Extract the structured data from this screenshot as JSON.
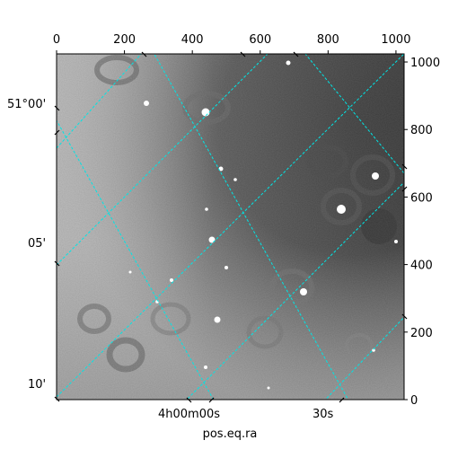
{
  "figure": {
    "xlabel": "pos.eq.ra",
    "colors": {
      "grid": "#00e5e5",
      "frame": "#000000",
      "background": "#ffffff"
    },
    "top_axis": {
      "ticks": [
        "0",
        "200",
        "400",
        "600",
        "800",
        "1000"
      ],
      "values": [
        0,
        200,
        400,
        600,
        800,
        1000
      ],
      "range": [
        0,
        1024
      ]
    },
    "right_axis": {
      "ticks": [
        "0",
        "200",
        "400",
        "600",
        "800",
        "1000"
      ],
      "values": [
        0,
        200,
        400,
        600,
        800,
        1000
      ],
      "range": [
        0,
        1024
      ]
    },
    "left_axis": {
      "ticks": [
        "51°00'",
        "05'",
        "10'"
      ]
    },
    "bottom_axis": {
      "ticks": [
        "4h00m00s",
        "30s"
      ]
    }
  }
}
